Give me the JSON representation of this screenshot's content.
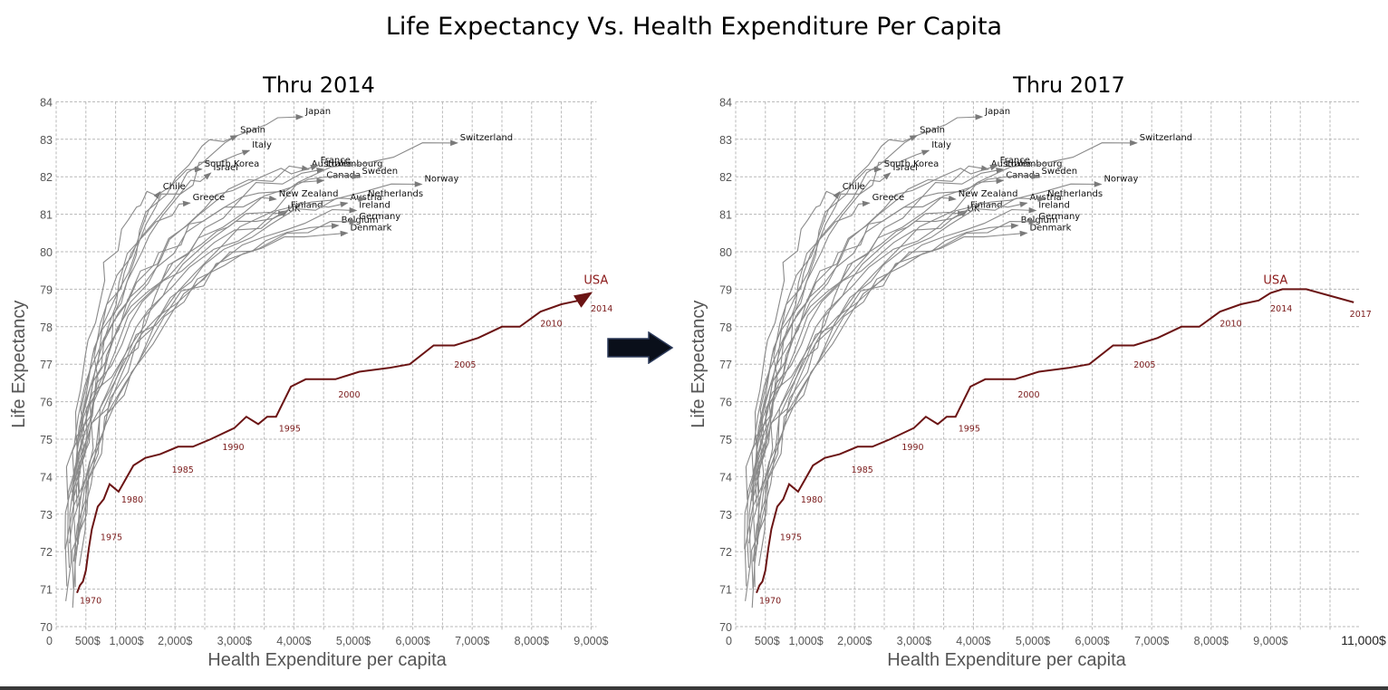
{
  "title": "Life Expectancy Vs. Health Expenditure Per Capita",
  "arrow": "right-arrow-icon",
  "colors": {
    "usa": "#6b1414",
    "countries": "#8a8a8a",
    "grid": "#b8b8b8",
    "arrow": "#0a0f1a"
  },
  "chart_data": [
    {
      "type": "line",
      "title": "Thru 2014",
      "xlabel": "Health Expenditure per capita",
      "ylabel": "Life Expectancy",
      "xlim": [
        0,
        9000
      ],
      "ylim": [
        70,
        84
      ],
      "x_ticks": [
        "0",
        "500$",
        "1,000$",
        "2,000$",
        "3,000$",
        "4,000$",
        "5,000$",
        "6,000$",
        "7,000$",
        "8,000$",
        "9,000$"
      ],
      "y_ticks": [
        "70",
        "71",
        "72",
        "73",
        "74",
        "75",
        "76",
        "77",
        "78",
        "79",
        "80",
        "81",
        "82",
        "83",
        "84"
      ],
      "grid": true,
      "country_endpoints": [
        {
          "name": "Japan",
          "x": 4150,
          "y": 83.6
        },
        {
          "name": "Spain",
          "x": 3050,
          "y": 83.1
        },
        {
          "name": "Italy",
          "x": 3250,
          "y": 82.7
        },
        {
          "name": "South Korea",
          "x": 2450,
          "y": 82.2
        },
        {
          "name": "Israel",
          "x": 2600,
          "y": 82.1
        },
        {
          "name": "Australia",
          "x": 4250,
          "y": 82.2
        },
        {
          "name": "France",
          "x": 4400,
          "y": 82.3
        },
        {
          "name": "Luxembourg",
          "x": 4500,
          "y": 82.2
        },
        {
          "name": "Canada",
          "x": 4500,
          "y": 81.9
        },
        {
          "name": "Sweden",
          "x": 5100,
          "y": 82.0
        },
        {
          "name": "Switzerland",
          "x": 6750,
          "y": 82.9
        },
        {
          "name": "Norway",
          "x": 6150,
          "y": 81.8
        },
        {
          "name": "Chile",
          "x": 1750,
          "y": 81.6
        },
        {
          "name": "Greece",
          "x": 2250,
          "y": 81.3
        },
        {
          "name": "New Zealand",
          "x": 3700,
          "y": 81.4
        },
        {
          "name": "Finland",
          "x": 3900,
          "y": 81.1
        },
        {
          "name": "UK",
          "x": 3850,
          "y": 81.0
        },
        {
          "name": "Austria",
          "x": 4900,
          "y": 81.3
        },
        {
          "name": "Netherlands",
          "x": 5200,
          "y": 81.4
        },
        {
          "name": "Ireland",
          "x": 5050,
          "y": 81.1
        },
        {
          "name": "Belgium",
          "x": 4750,
          "y": 80.7
        },
        {
          "name": "Germany",
          "x": 5050,
          "y": 80.8
        },
        {
          "name": "Denmark",
          "x": 4900,
          "y": 80.5
        }
      ],
      "usa": {
        "label": "USA",
        "points": [
          [
            350,
            70.9
          ],
          [
            400,
            71.1
          ],
          [
            450,
            71.2
          ],
          [
            500,
            71.5
          ],
          [
            550,
            72.1
          ],
          [
            600,
            72.6
          ],
          [
            700,
            73.2
          ],
          [
            800,
            73.4
          ],
          [
            900,
            73.8
          ],
          [
            1050,
            73.6
          ],
          [
            1300,
            74.3
          ],
          [
            1500,
            74.5
          ],
          [
            1750,
            74.6
          ],
          [
            2050,
            74.8
          ],
          [
            2300,
            74.8
          ],
          [
            2600,
            75.0
          ],
          [
            3000,
            75.3
          ],
          [
            3200,
            75.6
          ],
          [
            3400,
            75.4
          ],
          [
            3550,
            75.6
          ],
          [
            3700,
            75.6
          ],
          [
            3950,
            76.4
          ],
          [
            4200,
            76.6
          ],
          [
            4700,
            76.6
          ],
          [
            5100,
            76.8
          ],
          [
            5600,
            76.9
          ],
          [
            5950,
            77.0
          ],
          [
            6350,
            77.5
          ],
          [
            6700,
            77.5
          ],
          [
            7100,
            77.7
          ],
          [
            7500,
            78.0
          ],
          [
            7800,
            78.0
          ],
          [
            8150,
            78.4
          ],
          [
            8500,
            78.6
          ],
          [
            8800,
            78.7
          ],
          [
            9000,
            78.9
          ]
        ],
        "year_labels": [
          {
            "year": "1970",
            "x": 350,
            "y": 70.9
          },
          {
            "year": "1975",
            "x": 700,
            "y": 72.6
          },
          {
            "year": "1980",
            "x": 1050,
            "y": 73.6
          },
          {
            "year": "1985",
            "x": 1900,
            "y": 74.4
          },
          {
            "year": "1990",
            "x": 2750,
            "y": 75.0
          },
          {
            "year": "1995",
            "x": 3700,
            "y": 75.5
          },
          {
            "year": "2000",
            "x": 4700,
            "y": 76.4
          },
          {
            "year": "2005",
            "x": 6650,
            "y": 77.2
          },
          {
            "year": "2010",
            "x": 8100,
            "y": 78.3
          },
          {
            "year": "2014",
            "x": 8950,
            "y": 78.7
          }
        ]
      }
    },
    {
      "type": "line",
      "title": "Thru 2017",
      "xlabel": "Health Expenditure per capita",
      "ylabel": "Life Expectancy",
      "xlim": [
        0,
        11000
      ],
      "ylim": [
        70,
        84
      ],
      "x_ticks": [
        "0",
        "500$",
        "1,000$",
        "2,000$",
        "3,000$",
        "4,000$",
        "5,000$",
        "6,000$",
        "7,000$",
        "8,000$",
        "9,000$",
        "11,000$"
      ],
      "y_ticks": [
        "70",
        "71",
        "72",
        "73",
        "74",
        "75",
        "76",
        "77",
        "78",
        "79",
        "80",
        "81",
        "82",
        "83",
        "84"
      ],
      "grid": true,
      "country_endpoints": "same as Thru 2014",
      "usa": {
        "label": "USA",
        "points_extension": [
          [
            9000,
            78.9
          ],
          [
            9200,
            79.0
          ],
          [
            9600,
            79.0
          ],
          [
            10400,
            78.8
          ],
          [
            10200,
            78.6
          ],
          [
            10300,
            78.7
          ]
        ],
        "year_labels_extra": [
          {
            "year": "2017",
            "x": 10300,
            "y": 78.6
          }
        ]
      }
    }
  ]
}
